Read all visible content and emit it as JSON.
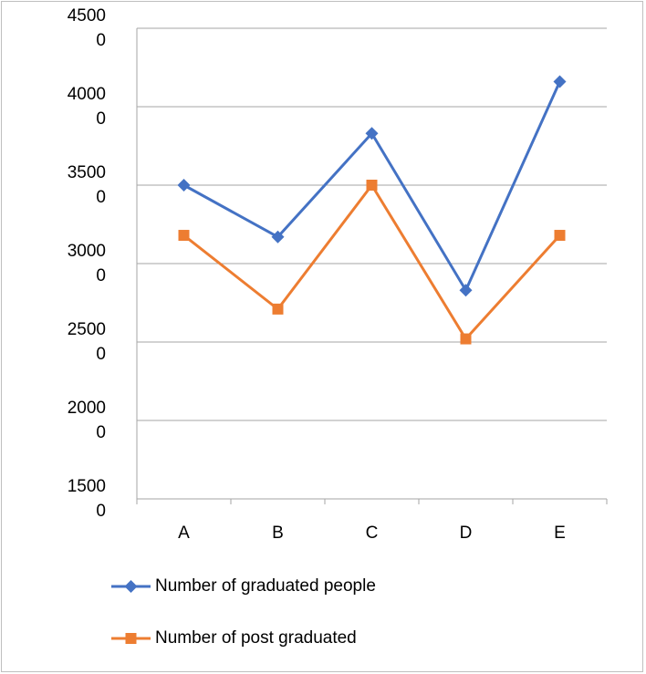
{
  "chart_data": {
    "type": "line",
    "categories": [
      "A",
      "B",
      "C",
      "D",
      "E"
    ],
    "series": [
      {
        "name": "Number of graduated people",
        "color": "#4472c4",
        "marker": "diamond",
        "values": [
          35000,
          31700,
          38300,
          28300,
          41600
        ]
      },
      {
        "name": "Number of post graduated",
        "color": "#ed7d31",
        "marker": "square",
        "values": [
          31800,
          27100,
          35000,
          25200,
          31800
        ]
      }
    ],
    "ylim": [
      15000,
      45000
    ],
    "yticks": [
      15000,
      20000,
      25000,
      30000,
      35000,
      40000,
      45000
    ],
    "grid": true,
    "legend": "bottom"
  }
}
